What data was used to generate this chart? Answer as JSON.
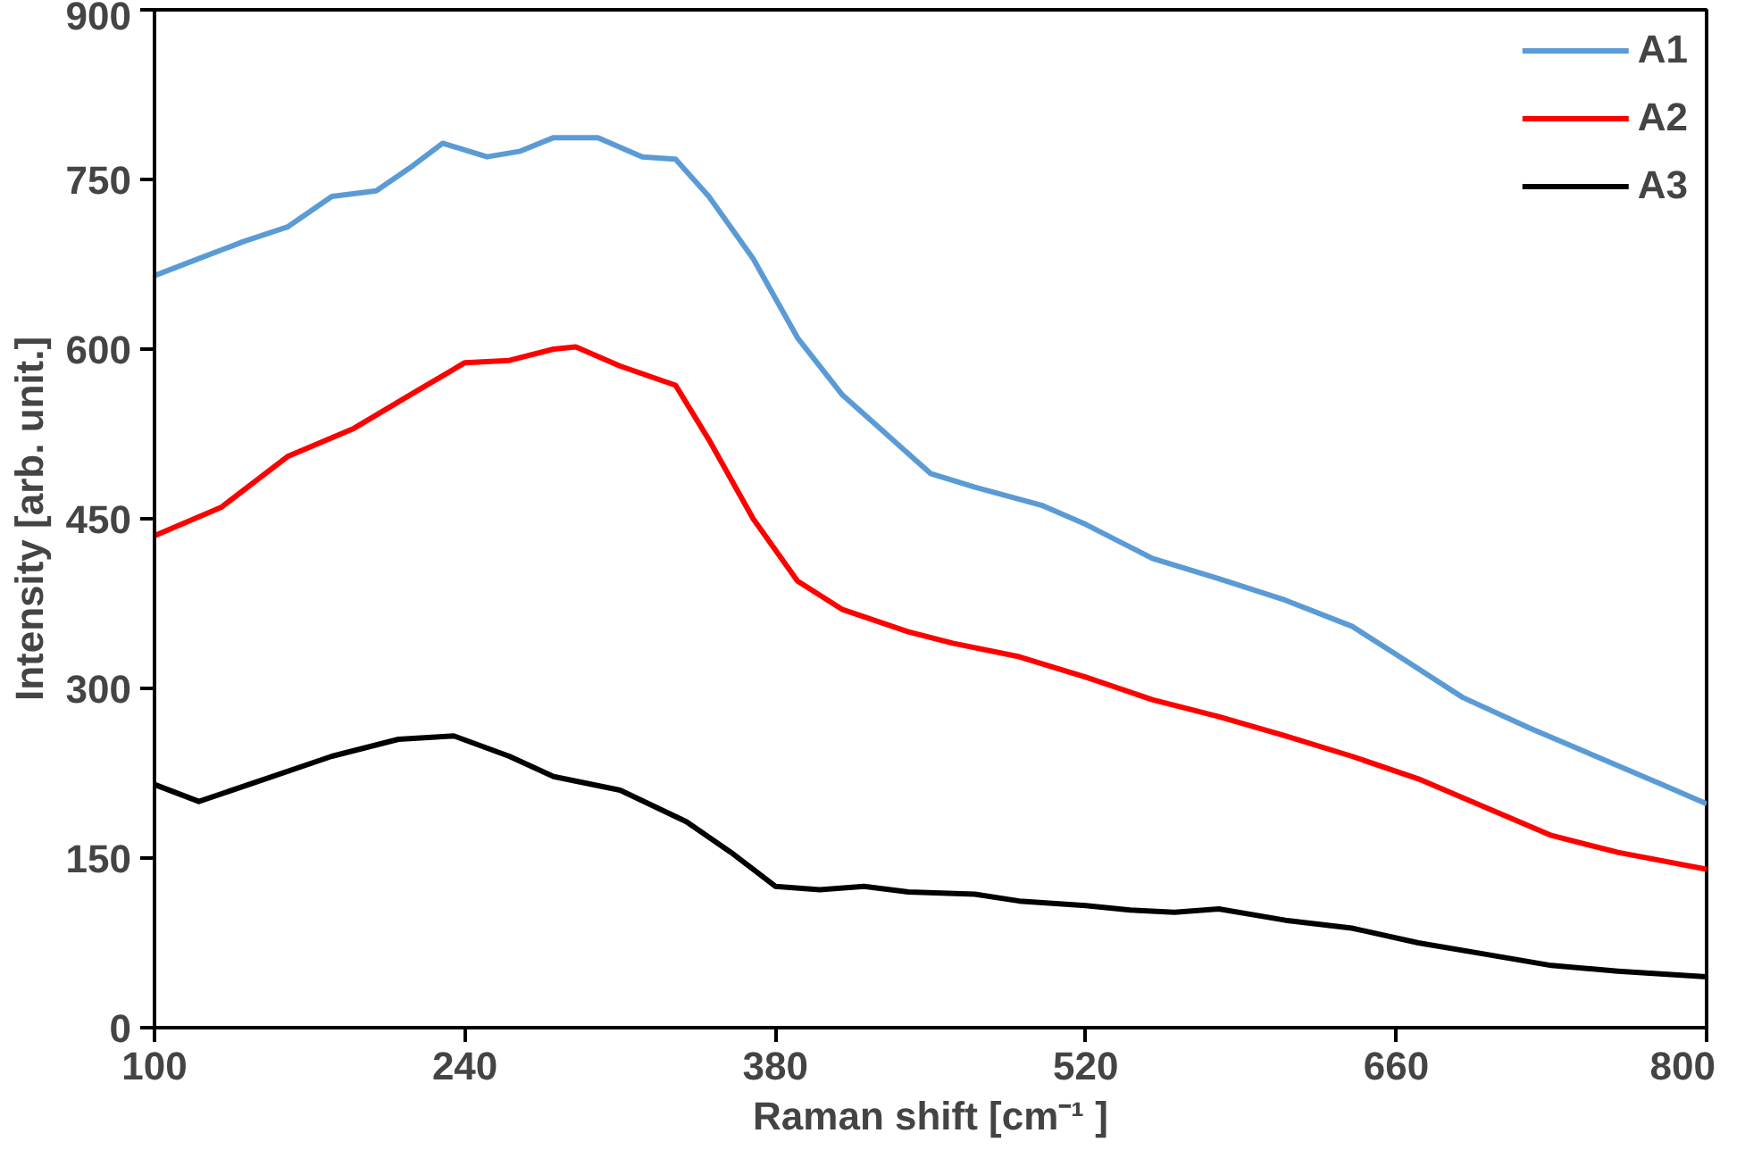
{
  "chart_data": {
    "type": "line",
    "xlabel": "Raman shift [cm⁻¹ ]",
    "ylabel": "Intensity [arb. unit.]",
    "xlim": [
      100,
      800
    ],
    "xticks": [
      100,
      240,
      380,
      520,
      660,
      800
    ],
    "ylim": [
      0,
      900
    ],
    "yticks": [
      0,
      150,
      300,
      450,
      600,
      750,
      900
    ],
    "grid": false,
    "legend": "top right",
    "line_style": "solid",
    "series": [
      {
        "name": "A1",
        "color": "#5b9bd5",
        "x": [
          100,
          120,
          140,
          160,
          180,
          200,
          215,
          230,
          250,
          265,
          280,
          300,
          320,
          335,
          350,
          370,
          390,
          410,
          430,
          450,
          470,
          500,
          520,
          550,
          580,
          610,
          640,
          660,
          690,
          720,
          750,
          780,
          800
        ],
        "values": [
          665,
          680,
          695,
          708,
          735,
          740,
          760,
          782,
          770,
          775,
          787,
          787,
          770,
          768,
          735,
          680,
          610,
          560,
          525,
          490,
          478,
          462,
          445,
          415,
          397,
          378,
          355,
          330,
          292,
          265,
          240,
          215,
          198
        ]
      },
      {
        "name": "A2",
        "color": "#ff0000",
        "x": [
          100,
          130,
          160,
          190,
          220,
          240,
          260,
          280,
          290,
          310,
          335,
          350,
          370,
          390,
          410,
          440,
          460,
          490,
          520,
          550,
          580,
          610,
          640,
          670,
          700,
          730,
          760,
          800
        ],
        "values": [
          435,
          460,
          505,
          530,
          565,
          588,
          590,
          600,
          602,
          585,
          568,
          520,
          450,
          395,
          370,
          350,
          340,
          328,
          310,
          290,
          275,
          258,
          240,
          220,
          195,
          170,
          155,
          140
        ]
      },
      {
        "name": "A3",
        "color": "#000000",
        "x": [
          100,
          120,
          150,
          180,
          210,
          235,
          260,
          280,
          310,
          340,
          360,
          380,
          400,
          420,
          440,
          470,
          490,
          520,
          540,
          560,
          580,
          610,
          640,
          670,
          700,
          730,
          760,
          800
        ],
        "values": [
          215,
          200,
          220,
          240,
          255,
          258,
          240,
          222,
          210,
          182,
          155,
          125,
          122,
          125,
          120,
          118,
          112,
          108,
          104,
          102,
          105,
          95,
          88,
          75,
          65,
          55,
          50,
          45
        ]
      }
    ]
  }
}
